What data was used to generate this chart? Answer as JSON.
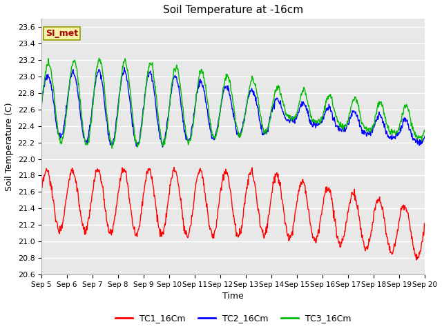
{
  "title": "Soil Temperature at -16cm",
  "xlabel": "Time",
  "ylabel": "Soil Temperature (C)",
  "ylim": [
    20.6,
    23.7
  ],
  "xlim_days": [
    0,
    15
  ],
  "annotation_text": "SI_met",
  "legend_labels": [
    "TC1_16Cm",
    "TC2_16Cm",
    "TC3_16Cm"
  ],
  "line_colors": [
    "#ff0000",
    "#0000ff",
    "#00bb00"
  ],
  "figure_bg": "#ffffff",
  "plot_bg": "#e8e8e8",
  "grid_color": "#ffffff",
  "yticks": [
    20.6,
    20.8,
    21.0,
    21.2,
    21.4,
    21.6,
    21.8,
    22.0,
    22.2,
    22.4,
    22.6,
    22.8,
    23.0,
    23.2,
    23.4,
    23.6
  ],
  "xtick_labels": [
    "Sep 5",
    "Sep 6",
    "Sep 7",
    "Sep 8",
    "Sep 9",
    "Sep 10",
    "Sep 11",
    "Sep 12",
    "Sep 13",
    "Sep 14",
    "Sep 15",
    "Sep 16",
    "Sep 17",
    "Sep 18",
    "Sep 19",
    "Sep 20"
  ],
  "n_points": 900,
  "annotation_color": "#aa0000",
  "annotation_bg": "#f5f5aa",
  "annotation_edge": "#999900"
}
